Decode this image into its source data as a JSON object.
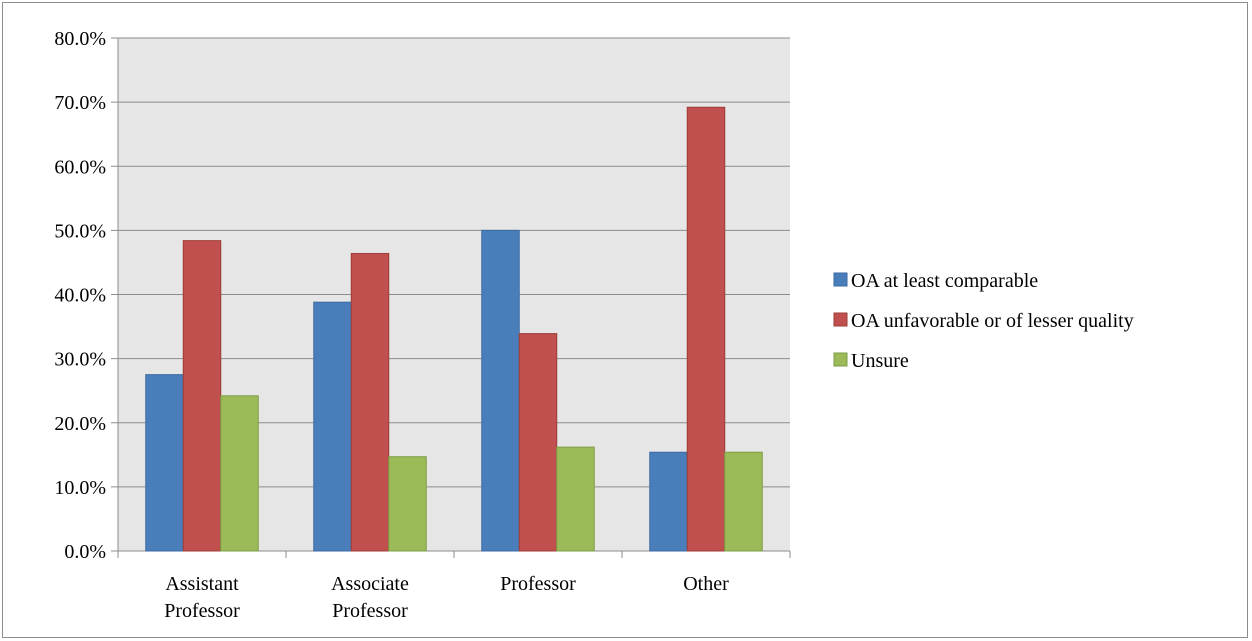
{
  "chart_data": {
    "type": "bar",
    "categories": [
      [
        "Assistant",
        "Professor"
      ],
      [
        "Associate",
        "Professor"
      ],
      [
        "Professor"
      ],
      [
        "Other"
      ]
    ],
    "series": [
      {
        "name": "OA at least comparable",
        "color": "#4a7ebb",
        "stroke": "#3a6aa3",
        "values": [
          27.5,
          38.8,
          50.0,
          15.4
        ]
      },
      {
        "name": "OA unfavorable or of lesser quality",
        "color": "#c0504d",
        "stroke": "#9e3d3a",
        "values": [
          48.4,
          46.4,
          33.9,
          69.2
        ]
      },
      {
        "name": "Unsure",
        "color": "#9bbb59",
        "stroke": "#7e9c45",
        "values": [
          24.2,
          14.7,
          16.2,
          15.4
        ]
      }
    ],
    "ylim": [
      0,
      80
    ],
    "yticks": [
      "0.0%",
      "10.0%",
      "20.0%",
      "30.0%",
      "40.0%",
      "50.0%",
      "60.0%",
      "70.0%",
      "80.0%"
    ],
    "ytick_values": [
      0,
      10,
      20,
      30,
      40,
      50,
      60,
      70,
      80
    ],
    "title": "",
    "xlabel": "",
    "ylabel": "",
    "grid": true,
    "legend_position": "right",
    "plot_background": "#e6e6e6"
  }
}
